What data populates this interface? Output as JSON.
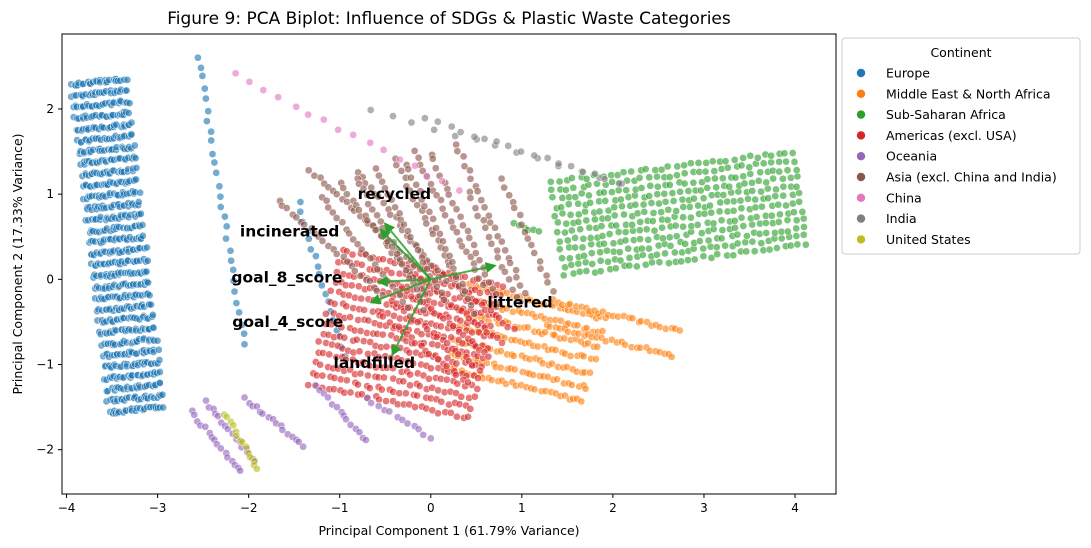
{
  "chart_data": {
    "type": "scatter",
    "title": "Figure 9: PCA Biplot: Influence of SDGs & Plastic Waste Categories",
    "xlabel": "Principal Component 1 (61.79% Variance)",
    "ylabel": "Principal Component 2 (17.33% Variance)",
    "xlim": [
      -4.05,
      4.45
    ],
    "ylim": [
      -2.52,
      2.88
    ],
    "xticks": [
      -4,
      -3,
      -2,
      -1,
      0,
      1,
      2,
      3,
      4
    ],
    "yticks": [
      -2,
      -1,
      0,
      1,
      2
    ],
    "grid": false,
    "legend": {
      "title": "Continent",
      "placement": "outside-top-right",
      "entries": [
        {
          "name": "Europe",
          "color": "#1f77b4"
        },
        {
          "name": "Middle East & North Africa",
          "color": "#ff7f0e"
        },
        {
          "name": "Sub-Saharan Africa",
          "color": "#2ca02c"
        },
        {
          "name": "Americas (excl. USA)",
          "color": "#d62728"
        },
        {
          "name": "Oceania",
          "color": "#9467bd"
        },
        {
          "name": "Asia (excl. China and India)",
          "color": "#8c564b"
        },
        {
          "name": "China",
          "color": "#e377c2"
        },
        {
          "name": "India",
          "color": "#7f7f7f"
        },
        {
          "name": "United States",
          "color": "#bcbd22"
        }
      ]
    },
    "loadings": [
      {
        "name": "recycled",
        "x": -0.5,
        "y": 0.65,
        "label_x": -0.4,
        "label_y": 1.0
      },
      {
        "name": "incinerated",
        "x": -0.55,
        "y": 0.58,
        "label_x": -1.55,
        "label_y": 0.56
      },
      {
        "name": "goal_8_score",
        "x": -0.57,
        "y": -0.03,
        "label_x": -1.58,
        "label_y": 0.02
      },
      {
        "name": "goal_4_score",
        "x": -0.65,
        "y": -0.27,
        "label_x": -1.57,
        "label_y": -0.5
      },
      {
        "name": "littered",
        "x": 0.7,
        "y": 0.16,
        "label_x": 0.98,
        "label_y": -0.27
      },
      {
        "name": "landfilled",
        "x": -0.42,
        "y": -0.88,
        "label_x": -0.62,
        "label_y": -0.98
      }
    ],
    "series": [
      {
        "name": "Europe",
        "clusters": [
          {
            "x0": -3.65,
            "y0": 2.32,
            "dx": 0.42,
            "dy": -3.85,
            "spread": 0.3,
            "n": 30,
            "rows": 26
          },
          {
            "x0": -2.55,
            "y0": 2.62,
            "dx": 0.5,
            "dy": -3.4,
            "spread": 0.2,
            "n": 28,
            "rows": 1
          },
          {
            "x0": -1.45,
            "y0": 0.9,
            "dx": 0.5,
            "dy": -1.8,
            "spread": 0.2,
            "n": 18,
            "rows": 1
          }
        ]
      },
      {
        "name": "Middle East & North Africa",
        "clusters": [
          {
            "x0": 0.3,
            "y0": -0.55,
            "dx": 1.5,
            "dy": -0.4,
            "spread": 0.5,
            "n": 30,
            "rows": 7
          },
          {
            "x0": 1.3,
            "y0": -0.4,
            "dx": 1.4,
            "dy": -0.35,
            "spread": 0.15,
            "n": 28,
            "rows": 2
          }
        ]
      },
      {
        "name": "Sub-Saharan Africa",
        "clusters": [
          {
            "x0": 1.4,
            "y0": 0.6,
            "dx": 2.65,
            "dy": 0.35,
            "spread": 0.55,
            "n": 34,
            "rows": 12
          },
          {
            "x0": 0.9,
            "y0": 0.65,
            "dx": 0.3,
            "dy": -0.1,
            "spread": 0.2,
            "n": 6,
            "rows": 1
          }
        ]
      },
      {
        "name": "Americas (excl. USA)",
        "clusters": [
          {
            "x0": -1.15,
            "y0": -0.45,
            "dx": 1.75,
            "dy": -0.4,
            "spread": 0.8,
            "n": 28,
            "rows": 14
          },
          {
            "x0": -0.3,
            "y0": -0.1,
            "dx": 0.95,
            "dy": -0.8,
            "spread": 0.4,
            "n": 20,
            "rows": 5
          }
        ]
      },
      {
        "name": "Oceania",
        "clusters": [
          {
            "x0": -2.55,
            "y0": -1.5,
            "dx": 0.55,
            "dy": -0.7,
            "spread": 0.1,
            "n": 16,
            "rows": 2
          },
          {
            "x0": -2.05,
            "y0": -1.4,
            "dx": 0.65,
            "dy": -0.55,
            "spread": 0.1,
            "n": 16,
            "rows": 1
          },
          {
            "x0": -1.25,
            "y0": -1.25,
            "dx": 0.55,
            "dy": -0.65,
            "spread": 0.1,
            "n": 14,
            "rows": 1
          },
          {
            "x0": -0.7,
            "y0": -1.4,
            "dx": 0.7,
            "dy": -0.45,
            "spread": 0.1,
            "n": 12,
            "rows": 1
          }
        ]
      },
      {
        "name": "Asia (excl. China and India)",
        "clusters": [
          {
            "x0": -1.5,
            "y0": 1.1,
            "dx": 1.15,
            "dy": -1.1,
            "spread": 0.25,
            "n": 24,
            "rows": 2
          },
          {
            "x0": -1.0,
            "y0": 1.12,
            "dx": 0.95,
            "dy": -1.3,
            "spread": 0.25,
            "n": 22,
            "rows": 3
          },
          {
            "x0": -0.5,
            "y0": 1.35,
            "dx": 0.75,
            "dy": -1.55,
            "spread": 0.35,
            "n": 22,
            "rows": 4
          },
          {
            "x0": 0.0,
            "y0": 1.48,
            "dx": 0.75,
            "dy": -1.75,
            "spread": 0.3,
            "n": 22,
            "rows": 3
          },
          {
            "x0": 0.6,
            "y0": 1.1,
            "dx": 0.55,
            "dy": -1.3,
            "spread": 0.2,
            "n": 16,
            "rows": 2
          }
        ]
      },
      {
        "name": "China",
        "clusters": [
          {
            "x0": -2.15,
            "y0": 2.4,
            "dx": 2.45,
            "dy": -1.35,
            "spread": 0.02,
            "n": 16,
            "rows": 1
          }
        ]
      },
      {
        "name": "India",
        "clusters": [
          {
            "x0": -0.65,
            "y0": 1.98,
            "dx": 2.75,
            "dy": -0.85,
            "spread": 0.02,
            "n": 13,
            "rows": 1
          },
          {
            "x0": -0.05,
            "y0": 1.88,
            "dx": 2.1,
            "dy": -0.75,
            "spread": 0.02,
            "n": 17,
            "rows": 1
          }
        ]
      },
      {
        "name": "United States",
        "clusters": [
          {
            "x0": -2.25,
            "y0": -1.58,
            "dx": 0.35,
            "dy": -0.65,
            "spread": 0.05,
            "n": 14,
            "rows": 1
          }
        ]
      }
    ]
  }
}
